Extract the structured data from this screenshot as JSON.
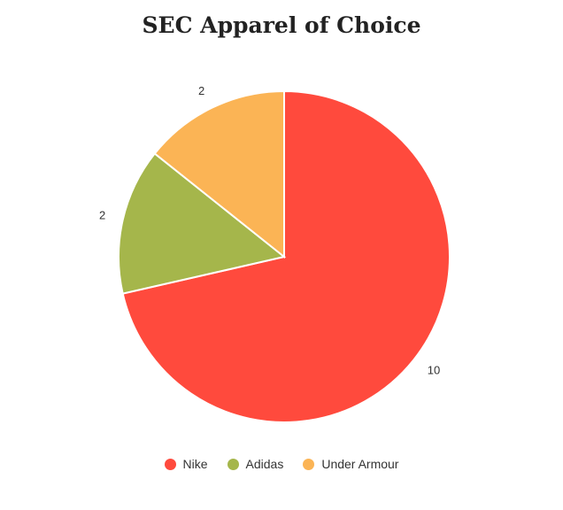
{
  "chart_data": {
    "type": "pie",
    "title": "SEC Apparel of Choice",
    "categories": [
      "Nike",
      "Adidas",
      "Under Armour"
    ],
    "values": [
      10,
      2,
      2
    ],
    "colors": [
      "#ff4a3d",
      "#a5b64b",
      "#fbb455"
    ],
    "data_labels": [
      "10",
      "2",
      "2"
    ],
    "legend_position": "bottom"
  }
}
